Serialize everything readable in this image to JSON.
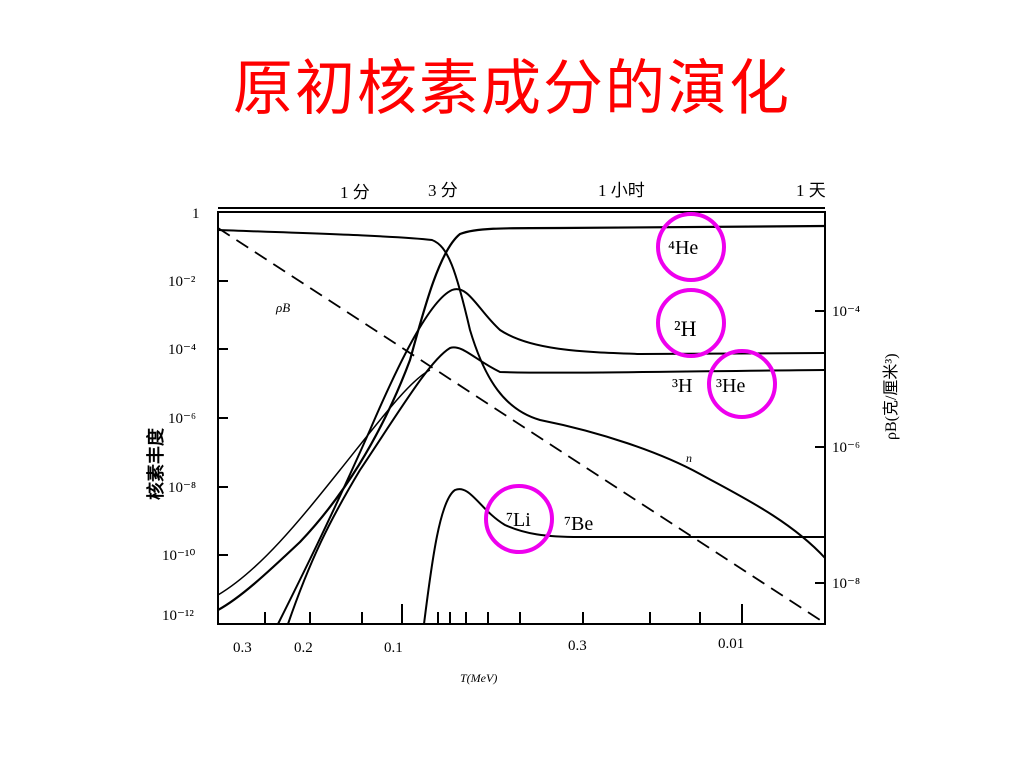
{
  "title": "原初核素成分的演化",
  "colors": {
    "title": "#ff0000",
    "highlight": "#ee00ee",
    "ink": "#000000"
  },
  "chart_data": {
    "type": "line",
    "xlabel": "T(MeV)",
    "ylabel_left": "核素丰度",
    "ylabel_right": "ρB(克/厘米³)",
    "top_axis_labels": [
      "1 分",
      "3 分",
      "1 小时",
      "1 天"
    ],
    "x_tick_labels": [
      "0.3",
      "0.2",
      "0.1",
      "0.3",
      "0.01"
    ],
    "y_tick_labels": [
      "1",
      "10⁻²",
      "10⁻⁴",
      "10⁻⁶",
      "10⁻⁸",
      "10⁻¹⁰",
      "10⁻¹²"
    ],
    "y_right_tick_labels": [
      "10⁻⁴",
      "10⁻⁶",
      "10⁻⁸"
    ],
    "ylim": [
      1e-12,
      1
    ],
    "series_labels": {
      "he4": "⁴He",
      "h2": "²H",
      "h3he3": "³H",
      "he3": "³He",
      "li7": "⁷Li",
      "be7": "⁷Be",
      "n": "n",
      "rho": "ρB"
    },
    "highlighted_series": [
      "⁴He",
      "²H",
      "³He",
      "⁷Li"
    ]
  }
}
